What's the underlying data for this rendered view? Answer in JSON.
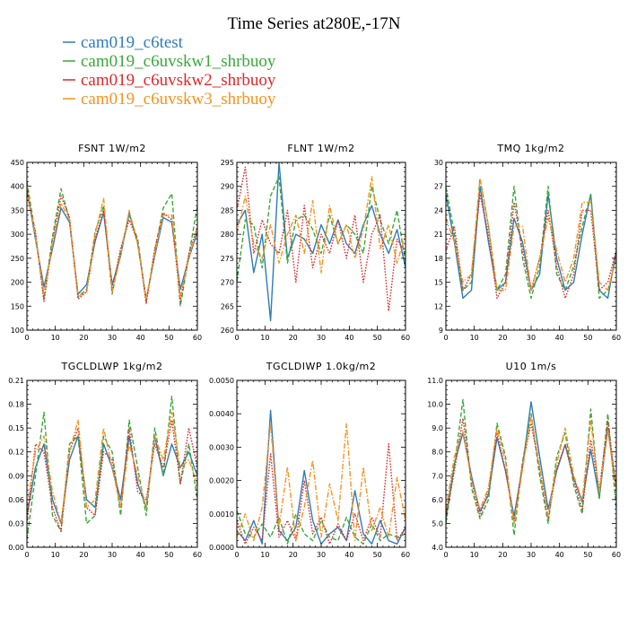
{
  "figure": {
    "title": "Time Series at280E,-17N"
  },
  "legend": [
    {
      "label": "cam019_c6test",
      "color": "#2f7cb8",
      "dash": "none"
    },
    {
      "label": "cam019_c6uvskw1_shrbuoy",
      "color": "#3aa83a",
      "dash": "dashed"
    },
    {
      "label": "cam019_c6uvskw2_shrbuoy",
      "color": "#e0282c",
      "dash": "dotted"
    },
    {
      "label": "cam019_c6uvskw3_shrbuoy",
      "color": "#f7931e",
      "dash": "dashdot"
    }
  ],
  "chart_data": [
    {
      "type": "line",
      "title": "FSNT   1W/m2",
      "xlim": [
        0,
        60
      ],
      "ylim": [
        100,
        450
      ],
      "xticks": [
        0,
        10,
        20,
        30,
        40,
        50,
        60
      ],
      "xtick_labels": [
        "0",
        "10",
        "20",
        "30",
        "40",
        "50",
        "60"
      ],
      "yticks": [
        100,
        150,
        200,
        250,
        300,
        350,
        400,
        450
      ],
      "ytick_labels": [
        "100",
        "150",
        "200",
        "250",
        "300",
        "350",
        "400",
        "450"
      ],
      "x": [
        0,
        3,
        6,
        9,
        12,
        15,
        18,
        21,
        24,
        27,
        30,
        33,
        36,
        39,
        42,
        45,
        48,
        51,
        54,
        57,
        60
      ],
      "series": [
        {
          "name": "cam019_c6test",
          "values": [
            395,
            290,
            190,
            270,
            355,
            325,
            175,
            195,
            285,
            345,
            195,
            255,
            345,
            280,
            165,
            255,
            335,
            325,
            185,
            250,
            305
          ]
        },
        {
          "name": "cam019_c6uvskw1_shrbuoy",
          "values": [
            410,
            300,
            165,
            295,
            395,
            330,
            170,
            185,
            305,
            360,
            175,
            265,
            340,
            290,
            160,
            265,
            355,
            385,
            150,
            255,
            360
          ]
        },
        {
          "name": "cam019_c6uvskw2_shrbuoy",
          "values": [
            385,
            305,
            160,
            285,
            380,
            335,
            165,
            180,
            290,
            350,
            185,
            270,
            330,
            285,
            155,
            270,
            345,
            330,
            160,
            260,
            315
          ]
        },
        {
          "name": "cam019_c6uvskw3_shrbuoy",
          "values": [
            400,
            295,
            175,
            280,
            365,
            330,
            170,
            180,
            300,
            375,
            180,
            255,
            350,
            280,
            165,
            260,
            340,
            340,
            170,
            250,
            315
          ]
        }
      ]
    },
    {
      "type": "line",
      "title": "FLNT   1W/m2",
      "xlim": [
        0,
        60
      ],
      "ylim": [
        260,
        295
      ],
      "xticks": [
        0,
        10,
        20,
        30,
        40,
        50,
        60
      ],
      "xtick_labels": [
        "0",
        "10",
        "20",
        "30",
        "40",
        "50",
        "60"
      ],
      "yticks": [
        260,
        265,
        270,
        275,
        280,
        285,
        290,
        295
      ],
      "ytick_labels": [
        "260",
        "265",
        "270",
        "275",
        "280",
        "285",
        "290",
        "295"
      ],
      "x": [
        0,
        3,
        6,
        9,
        12,
        15,
        18,
        21,
        24,
        27,
        30,
        33,
        36,
        39,
        42,
        45,
        48,
        51,
        54,
        57,
        60
      ],
      "series": [
        {
          "name": "cam019_c6test",
          "values": [
            282,
            285,
            272,
            280,
            262,
            295,
            275,
            280,
            279,
            276,
            282,
            278,
            283,
            278,
            276,
            282,
            286,
            280,
            276,
            281,
            273
          ]
        },
        {
          "name": "cam019_c6uvskw1_shrbuoy",
          "values": [
            270,
            283,
            282,
            273,
            288,
            292,
            274,
            283,
            284,
            281,
            276,
            284,
            278,
            282,
            280,
            276,
            290,
            283,
            278,
            285,
            274
          ]
        },
        {
          "name": "cam019_c6uvskw2_shrbuoy",
          "values": [
            285,
            294,
            276,
            283,
            278,
            276,
            285,
            270,
            286,
            273,
            280,
            276,
            283,
            275,
            284,
            270,
            280,
            284,
            264,
            279,
            276
          ]
        },
        {
          "name": "cam019_c6uvskw3_shrbuoy",
          "values": [
            280,
            288,
            278,
            275,
            282,
            274,
            280,
            284,
            276,
            287,
            272,
            286,
            278,
            282,
            275,
            281,
            292,
            277,
            282,
            274,
            280
          ]
        }
      ]
    },
    {
      "type": "line",
      "title": "TMQ   1kg/m2",
      "xlim": [
        0,
        60
      ],
      "ylim": [
        9,
        30
      ],
      "xticks": [
        0,
        10,
        20,
        30,
        40,
        50,
        60
      ],
      "xtick_labels": [
        "0",
        "10",
        "20",
        "30",
        "40",
        "50",
        "60"
      ],
      "yticks": [
        9,
        12,
        15,
        18,
        21,
        24,
        27,
        30
      ],
      "ytick_labels": [
        "9",
        "12",
        "15",
        "18",
        "21",
        "24",
        "27",
        "30"
      ],
      "x": [
        0,
        3,
        6,
        9,
        12,
        15,
        18,
        21,
        24,
        27,
        30,
        33,
        36,
        39,
        42,
        45,
        48,
        51,
        54,
        57,
        60
      ],
      "series": [
        {
          "name": "cam019_c6test",
          "values": [
            26,
            20,
            13,
            14,
            27,
            20,
            14,
            15,
            23,
            20,
            14,
            16,
            26,
            18,
            14,
            15,
            21,
            26,
            14,
            13,
            19
          ]
        },
        {
          "name": "cam019_c6uvskw1_shrbuoy",
          "values": [
            27,
            21,
            14,
            15,
            28,
            22,
            14,
            16,
            27,
            18,
            13,
            17,
            27,
            16,
            14,
            17,
            22,
            26,
            13,
            14,
            18
          ]
        },
        {
          "name": "cam019_c6uvskw2_shrbuoy",
          "values": [
            19,
            22,
            14,
            16,
            26,
            21,
            13,
            15,
            25,
            19,
            14,
            18,
            24,
            17,
            13,
            16,
            24,
            24,
            14,
            15,
            19
          ]
        },
        {
          "name": "cam019_c6uvskw3_shrbuoy",
          "values": [
            23,
            20,
            15,
            16,
            28,
            22,
            14,
            14,
            22,
            22,
            14,
            18,
            23,
            19,
            15,
            18,
            25,
            25,
            15,
            14,
            18
          ]
        }
      ]
    },
    {
      "type": "line",
      "title": "TGCLDLWP   1kg/m2",
      "xlim": [
        0,
        60
      ],
      "ylim": [
        0,
        0.21
      ],
      "xticks": [
        0,
        10,
        20,
        30,
        40,
        50,
        60
      ],
      "xtick_labels": [
        "0",
        "10",
        "20",
        "30",
        "40",
        "50",
        "60"
      ],
      "yticks": [
        0,
        0.03,
        0.06,
        0.09,
        0.12,
        0.15,
        0.18,
        0.21
      ],
      "ytick_labels": [
        "0.00",
        "0.03",
        "0.06",
        "0.09",
        "0.12",
        "0.15",
        "0.18",
        "0.21"
      ],
      "x": [
        0,
        3,
        6,
        9,
        12,
        15,
        18,
        21,
        24,
        27,
        30,
        33,
        36,
        39,
        42,
        45,
        48,
        51,
        54,
        57,
        60
      ],
      "series": [
        {
          "name": "cam019_c6test",
          "values": [
            0.04,
            0.1,
            0.13,
            0.06,
            0.03,
            0.11,
            0.14,
            0.06,
            0.05,
            0.13,
            0.1,
            0.06,
            0.14,
            0.08,
            0.05,
            0.14,
            0.09,
            0.13,
            0.1,
            0.12,
            0.09
          ]
        },
        {
          "name": "cam019_c6uvskw1_shrbuoy",
          "values": [
            0.01,
            0.09,
            0.17,
            0.04,
            0.02,
            0.13,
            0.14,
            0.03,
            0.04,
            0.14,
            0.12,
            0.04,
            0.16,
            0.1,
            0.04,
            0.15,
            0.09,
            0.19,
            0.08,
            0.13,
            0.06
          ]
        },
        {
          "name": "cam019_c6uvskw2_shrbuoy",
          "values": [
            0.03,
            0.13,
            0.12,
            0.05,
            0.02,
            0.12,
            0.15,
            0.05,
            0.04,
            0.12,
            0.11,
            0.05,
            0.15,
            0.07,
            0.06,
            0.13,
            0.1,
            0.16,
            0.08,
            0.15,
            0.1
          ]
        },
        {
          "name": "cam019_c6uvskw3_shrbuoy",
          "values": [
            0.05,
            0.12,
            0.14,
            0.07,
            0.03,
            0.12,
            0.16,
            0.05,
            0.06,
            0.15,
            0.1,
            0.05,
            0.13,
            0.09,
            0.05,
            0.14,
            0.11,
            0.17,
            0.1,
            0.11,
            0.08
          ]
        }
      ]
    },
    {
      "type": "line",
      "title": "TGCLDIWP   1.0kg/m2",
      "xlim": [
        0,
        60
      ],
      "ylim": [
        0,
        0.005
      ],
      "xticks": [
        0,
        10,
        20,
        30,
        40,
        50,
        60
      ],
      "xtick_labels": [
        "0",
        "10",
        "20",
        "30",
        "40",
        "50",
        "60"
      ],
      "yticks": [
        0,
        0.001,
        0.002,
        0.003,
        0.004,
        0.005
      ],
      "ytick_labels": [
        "0.0000",
        "0.0010",
        "0.0020",
        "0.0030",
        "0.0040",
        "0.0050"
      ],
      "x": [
        0,
        3,
        6,
        9,
        12,
        15,
        18,
        21,
        24,
        27,
        30,
        33,
        36,
        39,
        42,
        45,
        48,
        51,
        54,
        57,
        60
      ],
      "series": [
        {
          "name": "cam019_c6test",
          "values": [
            0.0005,
            0.0002,
            0.0008,
            0.0001,
            0.0041,
            0.0005,
            0.0002,
            0.0006,
            0.0023,
            0.0008,
            0.0001,
            0.0004,
            0.0006,
            0.0002,
            0.0017,
            0.0004,
            0.0001,
            0.0008,
            0.0002,
            0.0001,
            0.0006
          ]
        },
        {
          "name": "cam019_c6uvskw1_shrbuoy",
          "values": [
            0.0011,
            0.0004,
            0.0003,
            0.0007,
            0.0003,
            0.0009,
            0.0001,
            0.001,
            0.0004,
            0.0002,
            0.0008,
            0.0003,
            0.0002,
            0.0009,
            0.0003,
            0.0001,
            0.0007,
            0.0002,
            0.0004,
            0.0003,
            0.0004
          ]
        },
        {
          "name": "cam019_c6uvskw2_shrbuoy",
          "values": [
            0.0008,
            0.0001,
            0.0006,
            0.0002,
            0.0028,
            0.0003,
            0.0008,
            0.0002,
            0.002,
            0.0004,
            0.0009,
            0.0001,
            0.0007,
            0.0002,
            0.001,
            0.0002,
            0.0009,
            0.0003,
            0.0031,
            0.0002,
            0.0006
          ]
        },
        {
          "name": "cam019_c6uvskw3_shrbuoy",
          "values": [
            0.0003,
            0.001,
            0.0002,
            0.0012,
            0.0037,
            0.0006,
            0.0024,
            0.0002,
            0.0012,
            0.0026,
            0.0003,
            0.0019,
            0.0008,
            0.0037,
            0.0002,
            0.0024,
            0.0005,
            0.0012,
            0.0003,
            0.0021,
            0.0008
          ]
        }
      ]
    },
    {
      "type": "line",
      "title": "U10   1m/s",
      "xlim": [
        0,
        60
      ],
      "ylim": [
        4,
        11
      ],
      "xticks": [
        0,
        10,
        20,
        30,
        40,
        50,
        60
      ],
      "xtick_labels": [
        "0",
        "10",
        "20",
        "30",
        "40",
        "50",
        "60"
      ],
      "yticks": [
        4,
        5,
        6,
        7,
        8,
        9,
        10,
        11
      ],
      "ytick_labels": [
        "4.0",
        "5.0",
        "6.0",
        "7.0",
        "8.0",
        "9.0",
        "10.0",
        "11.0"
      ],
      "x": [
        0,
        3,
        6,
        9,
        12,
        15,
        18,
        21,
        24,
        27,
        30,
        33,
        36,
        39,
        42,
        45,
        48,
        51,
        54,
        57,
        60
      ],
      "series": [
        {
          "name": "cam019_c6test",
          "values": [
            5.2,
            7.5,
            8.8,
            7.0,
            5.5,
            6.2,
            8.6,
            7.2,
            5.3,
            7.4,
            10.1,
            7.8,
            5.6,
            7.2,
            8.3,
            6.9,
            5.9,
            8.1,
            6.1,
            9.0,
            6.5
          ]
        },
        {
          "name": "cam019_c6uvskw1_shrbuoy",
          "values": [
            5.0,
            7.4,
            10.2,
            6.5,
            5.2,
            6.0,
            9.2,
            7.8,
            4.5,
            7.6,
            9.6,
            7.0,
            5.0,
            7.8,
            8.8,
            6.6,
            5.4,
            9.8,
            6.0,
            9.6,
            5.6
          ]
        },
        {
          "name": "cam019_c6uvskw2_shrbuoy",
          "values": [
            5.3,
            7.2,
            9.4,
            6.8,
            5.3,
            6.4,
            8.8,
            7.2,
            5.1,
            7.5,
            9.2,
            7.3,
            5.2,
            7.3,
            8.3,
            6.8,
            5.6,
            8.5,
            6.4,
            9.3,
            6.4
          ]
        },
        {
          "name": "cam019_c6uvskw3_shrbuoy",
          "values": [
            5.6,
            7.8,
            8.9,
            6.8,
            5.6,
            6.5,
            9.0,
            7.6,
            5.0,
            7.3,
            9.5,
            7.4,
            5.3,
            7.5,
            9.0,
            7.0,
            6.0,
            9.3,
            6.3,
            8.9,
            6.3
          ]
        }
      ]
    }
  ]
}
